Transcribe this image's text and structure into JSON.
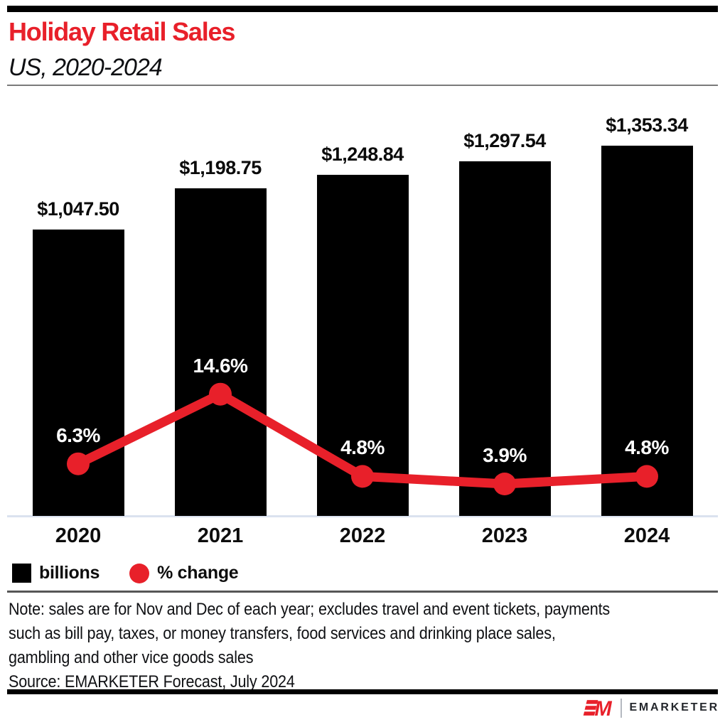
{
  "header": {
    "title": "Holiday Retail Sales",
    "subtitle": "US, 2020-2024"
  },
  "chart_data": {
    "type": "bar",
    "title": "Holiday Retail Sales",
    "subtitle": "US, 2020-2024",
    "categories": [
      "2020",
      "2021",
      "2022",
      "2023",
      "2024"
    ],
    "series": [
      {
        "name": "billions",
        "type": "bar",
        "color": "#000000",
        "values": [
          1047.5,
          1198.75,
          1248.84,
          1297.54,
          1353.34
        ],
        "labels": [
          "$1,047.50",
          "$1,198.75",
          "$1,248.84",
          "$1,297.54",
          "$1,353.34"
        ]
      },
      {
        "name": "% change",
        "type": "line",
        "color": "#e8202a",
        "values": [
          6.3,
          14.6,
          4.8,
          3.9,
          4.8
        ],
        "labels": [
          "6.3%",
          "14.6%",
          "3.9%",
          "4.8%"
        ],
        "labels_by_year": [
          "6.3%",
          "14.6%",
          "4.8%",
          "3.9%",
          "4.8%"
        ]
      }
    ],
    "grid": false,
    "legend_position": "bottom-left",
    "value_axis_visible": false
  },
  "legend": {
    "items": [
      {
        "label": "billions",
        "swatch": "square",
        "color": "#000000"
      },
      {
        "label": "% change",
        "swatch": "circle",
        "color": "#e8202a"
      }
    ]
  },
  "footer": {
    "note_lines": [
      "Note: sales are for Nov and Dec of each year; excludes travel and event tickets, payments",
      "such as bill pay, taxes, or money transfers, food services and drinking place sales,",
      "gambling and other vice goods sales"
    ],
    "source": "Source: EMARKETER Forecast, July 2024"
  },
  "logo": {
    "mark": "EM",
    "text": "EMARKETER"
  },
  "colors": {
    "accent": "#e8202a",
    "bar": "#000000",
    "axis_line": "#dbe2ef",
    "rule_black": "#000000",
    "rule_gray": "#565656",
    "header_rule_gray": "#7a7a7a"
  }
}
